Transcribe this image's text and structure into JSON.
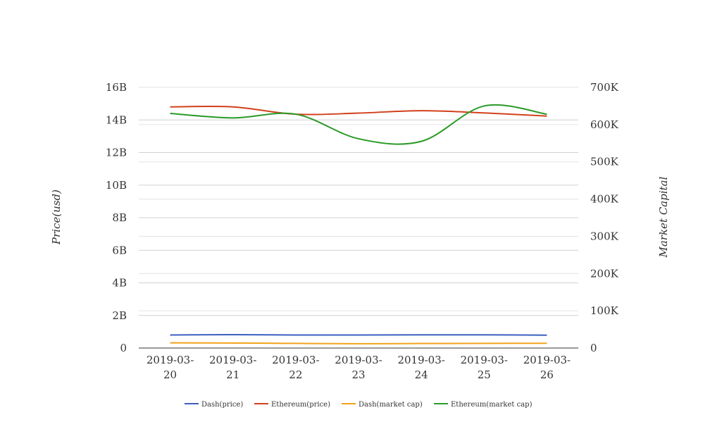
{
  "chart_data": {
    "type": "line",
    "categories": [
      "2019-03-20",
      "2019-03-21",
      "2019-03-22",
      "2019-03-23",
      "2019-03-24",
      "2019-03-25",
      "2019-03-26"
    ],
    "y_left": {
      "label": "Price(usd)",
      "ylim": [
        0,
        16000000000
      ],
      "ticks": [
        0,
        2000000000,
        4000000000,
        6000000000,
        8000000000,
        10000000000,
        12000000000,
        14000000000,
        16000000000
      ],
      "tick_labels": [
        "0",
        "2B",
        "4B",
        "6B",
        "8B",
        "10B",
        "12B",
        "14B",
        "16B"
      ]
    },
    "y_right": {
      "label": "Market Capital",
      "ylim": [
        0,
        700000
      ],
      "ticks": [
        0,
        100000,
        200000,
        300000,
        400000,
        500000,
        600000,
        700000
      ],
      "tick_labels": [
        "0",
        "100K",
        "200K",
        "300K",
        "400K",
        "500K",
        "600K",
        "700K"
      ]
    },
    "series": [
      {
        "name": "Dash(price)",
        "axis": "left",
        "color": "#3b5fc0",
        "values": [
          800000000,
          820000000,
          800000000,
          800000000,
          810000000,
          810000000,
          790000000
        ]
      },
      {
        "name": "Ethereum(price)",
        "axis": "left",
        "color": "#d2401c",
        "values": [
          14800000000,
          14800000000,
          14350000000,
          14420000000,
          14570000000,
          14430000000,
          14240000000
        ]
      },
      {
        "name": "Dash(market cap)",
        "axis": "right",
        "color": "#f2a21c",
        "values": [
          14000,
          13500,
          12500,
          11500,
          12200,
          12600,
          12700
        ]
      },
      {
        "name": "Ethereum(market cap)",
        "axis": "right",
        "color": "#2a9a26",
        "values": [
          630000,
          618000,
          628000,
          562000,
          555000,
          650000,
          628000
        ]
      }
    ],
    "grid": true,
    "legend": "bottom-center"
  }
}
